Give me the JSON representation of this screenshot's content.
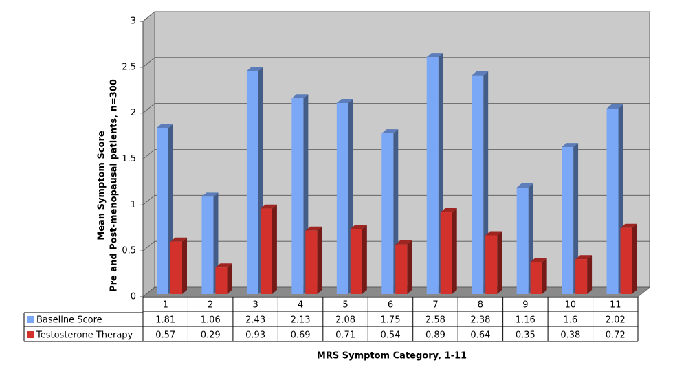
{
  "chart_data": {
    "type": "bar3d",
    "ylabel": [
      "Mean Symptom Score",
      "Pre and Post-menopausal patients, n=300"
    ],
    "xlabel": "MRS Symptom Category, 1-11",
    "categories": [
      "1",
      "2",
      "3",
      "4",
      "5",
      "6",
      "7",
      "8",
      "9",
      "10",
      "11"
    ],
    "series": [
      {
        "name": "Baseline Score",
        "color": "#7ba7f7",
        "values": [
          1.81,
          1.06,
          2.43,
          2.13,
          2.08,
          1.75,
          2.58,
          2.38,
          1.16,
          1.6,
          2.02
        ]
      },
      {
        "name": "Testosterone Therapy",
        "color": "#d3312b",
        "values": [
          0.57,
          0.29,
          0.93,
          0.69,
          0.71,
          0.54,
          0.89,
          0.64,
          0.35,
          0.38,
          0.72
        ]
      }
    ],
    "ylim": [
      0,
      3
    ],
    "yticks": [
      0,
      0.5,
      1,
      1.5,
      2,
      2.5,
      3
    ],
    "grid": true
  }
}
